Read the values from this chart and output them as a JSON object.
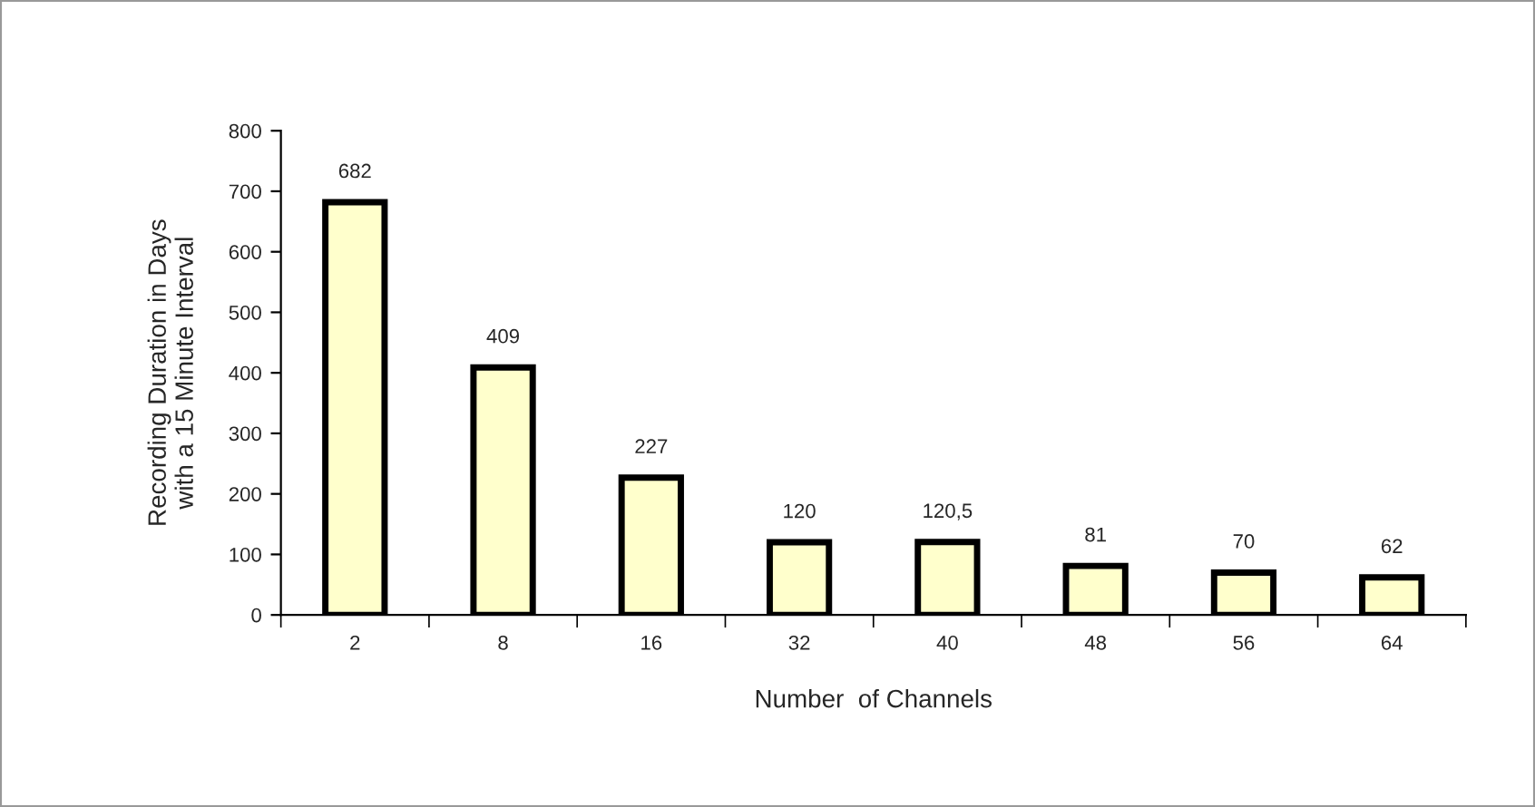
{
  "chart_data": {
    "type": "bar",
    "xlabel": "Number  of Channels",
    "ylabel": "Recording Duration in Days\nwith a 15 Minute Interval",
    "categories": [
      "2",
      "8",
      "16",
      "32",
      "40",
      "48",
      "56",
      "64"
    ],
    "values": [
      682,
      409,
      227,
      120,
      120.5,
      81,
      70,
      62
    ],
    "value_labels": [
      "682",
      "409",
      "227",
      "120",
      "120,5",
      "81",
      "70",
      "62"
    ],
    "color": "#ffffcc",
    "ylim": [
      0,
      800
    ],
    "yticks": [
      0,
      100,
      200,
      300,
      400,
      500,
      600,
      700,
      800
    ],
    "grid": false,
    "legend": false
  }
}
